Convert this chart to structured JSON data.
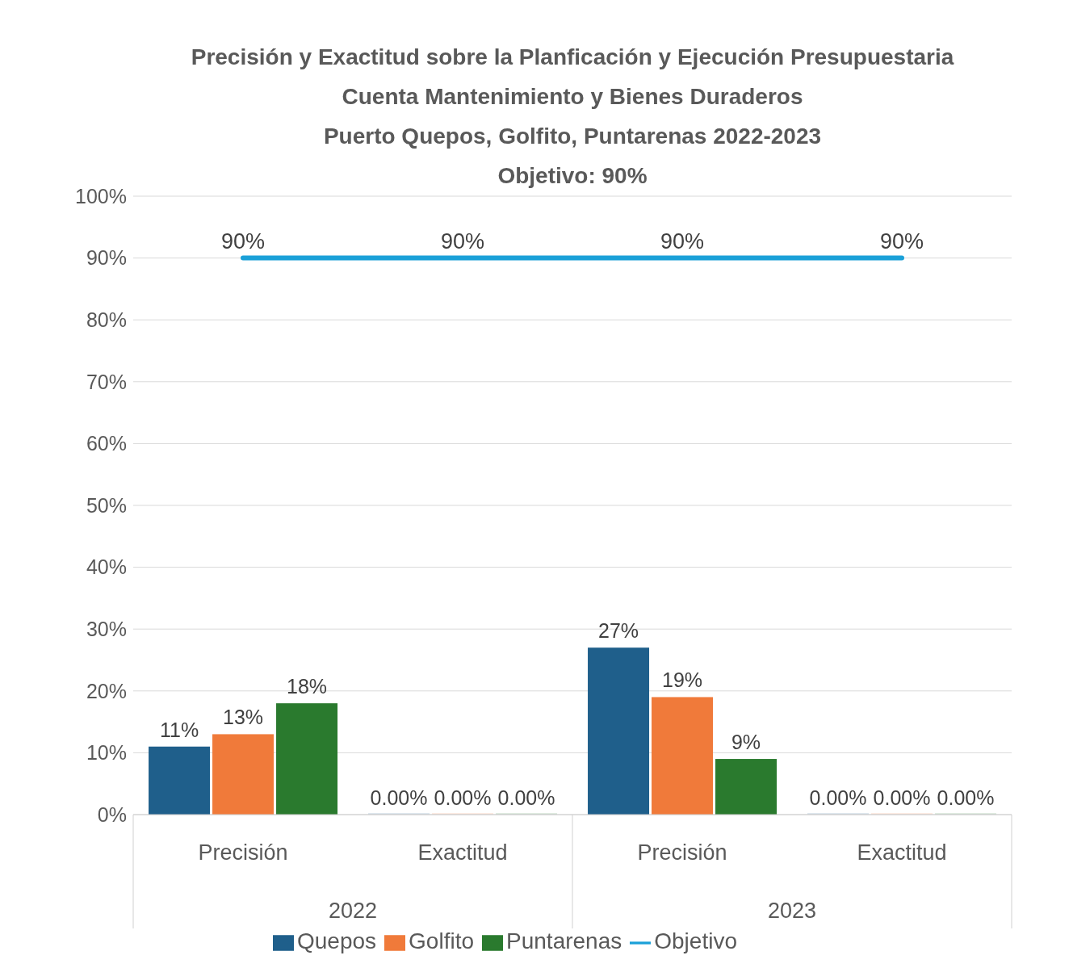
{
  "chart_data": {
    "type": "bar",
    "title": "Precisión y Exactitud sobre la Planficación y Ejecución Presupuestaria\nCuenta Mantenimiento y Bienes Duraderos\nPuerto Quepos, Golfito, Puntarenas 2022-2023\nObjetivo: 90%",
    "categories": [
      "Precisión",
      "Exactitud",
      "Precisión",
      "Exactitud"
    ],
    "annotations": [
      "2022",
      "2023"
    ],
    "series": [
      {
        "name": "Quepos",
        "color": "#1f5f8b",
        "values": [
          11,
          0,
          27,
          0
        ],
        "value_labels": [
          "11%",
          "0.00%",
          "27%",
          "0.00%"
        ]
      },
      {
        "name": "Golfito",
        "color": "#f07a3a",
        "values": [
          13,
          0,
          19,
          0
        ],
        "value_labels": [
          "13%",
          "0.00%",
          "19%",
          "0.00%"
        ]
      },
      {
        "name": "Puntarenas",
        "color": "#2a7a2e",
        "values": [
          18,
          0,
          9,
          0
        ],
        "value_labels": [
          "18%",
          "0.00%",
          "9%",
          "0.00%"
        ]
      },
      {
        "name": "Objetivo",
        "type": "line",
        "color": "#1aa0d8",
        "values": [
          90,
          90,
          90,
          90
        ],
        "value_labels": [
          "90%",
          "90%",
          "90%",
          "90%"
        ]
      }
    ],
    "ylim": [
      0,
      100
    ],
    "yticks": [
      {
        "value": 0,
        "label": "0%"
      },
      {
        "value": 10,
        "label": "10%"
      },
      {
        "value": 20,
        "label": "20%"
      },
      {
        "value": 30,
        "label": "30%"
      },
      {
        "value": 40,
        "label": "40%"
      },
      {
        "value": 50,
        "label": "50%"
      },
      {
        "value": 60,
        "label": "60%"
      },
      {
        "value": 70,
        "label": "70%"
      },
      {
        "value": 80,
        "label": "80%"
      },
      {
        "value": 90,
        "label": "90%"
      },
      {
        "value": 100,
        "label": "100%"
      }
    ],
    "grid": "y",
    "legend": "bottom",
    "marker": "none"
  }
}
